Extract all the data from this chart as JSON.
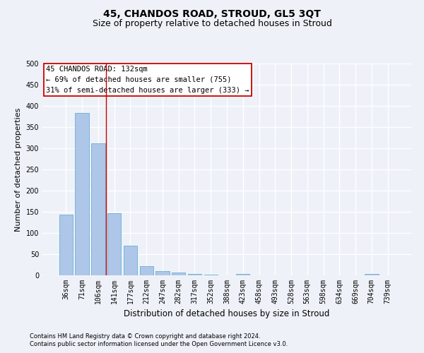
{
  "title": "45, CHANDOS ROAD, STROUD, GL5 3QT",
  "subtitle": "Size of property relative to detached houses in Stroud",
  "xlabel": "Distribution of detached houses by size in Stroud",
  "ylabel": "Number of detached properties",
  "footnote1": "Contains HM Land Registry data © Crown copyright and database right 2024.",
  "footnote2": "Contains public sector information licensed under the Open Government Licence v3.0.",
  "bar_labels": [
    "36sqm",
    "71sqm",
    "106sqm",
    "141sqm",
    "177sqm",
    "212sqm",
    "247sqm",
    "282sqm",
    "317sqm",
    "352sqm",
    "388sqm",
    "423sqm",
    "458sqm",
    "493sqm",
    "528sqm",
    "563sqm",
    "598sqm",
    "634sqm",
    "669sqm",
    "704sqm",
    "739sqm"
  ],
  "bar_values": [
    143,
    383,
    311,
    147,
    70,
    22,
    10,
    7,
    4,
    1,
    0,
    3,
    0,
    0,
    0,
    0,
    0,
    0,
    0,
    4,
    0
  ],
  "bar_color": "#aec6e8",
  "bar_edge_color": "#6baed6",
  "ylim": [
    0,
    500
  ],
  "yticks": [
    0,
    50,
    100,
    150,
    200,
    250,
    300,
    350,
    400,
    450,
    500
  ],
  "property_line_x": 2.5,
  "property_line_color": "#cc0000",
  "annotation_text": "45 CHANDOS ROAD: 132sqm\n← 69% of detached houses are smaller (755)\n31% of semi-detached houses are larger (333) →",
  "annotation_box_color": "#ffffff",
  "annotation_box_edge_color": "#cc0000",
  "background_color": "#eef2f8",
  "grid_color": "#ffffff",
  "title_fontsize": 10,
  "subtitle_fontsize": 9,
  "annotation_fontsize": 7.5,
  "tick_fontsize": 7,
  "xlabel_fontsize": 8.5,
  "ylabel_fontsize": 8,
  "footnote_fontsize": 6
}
